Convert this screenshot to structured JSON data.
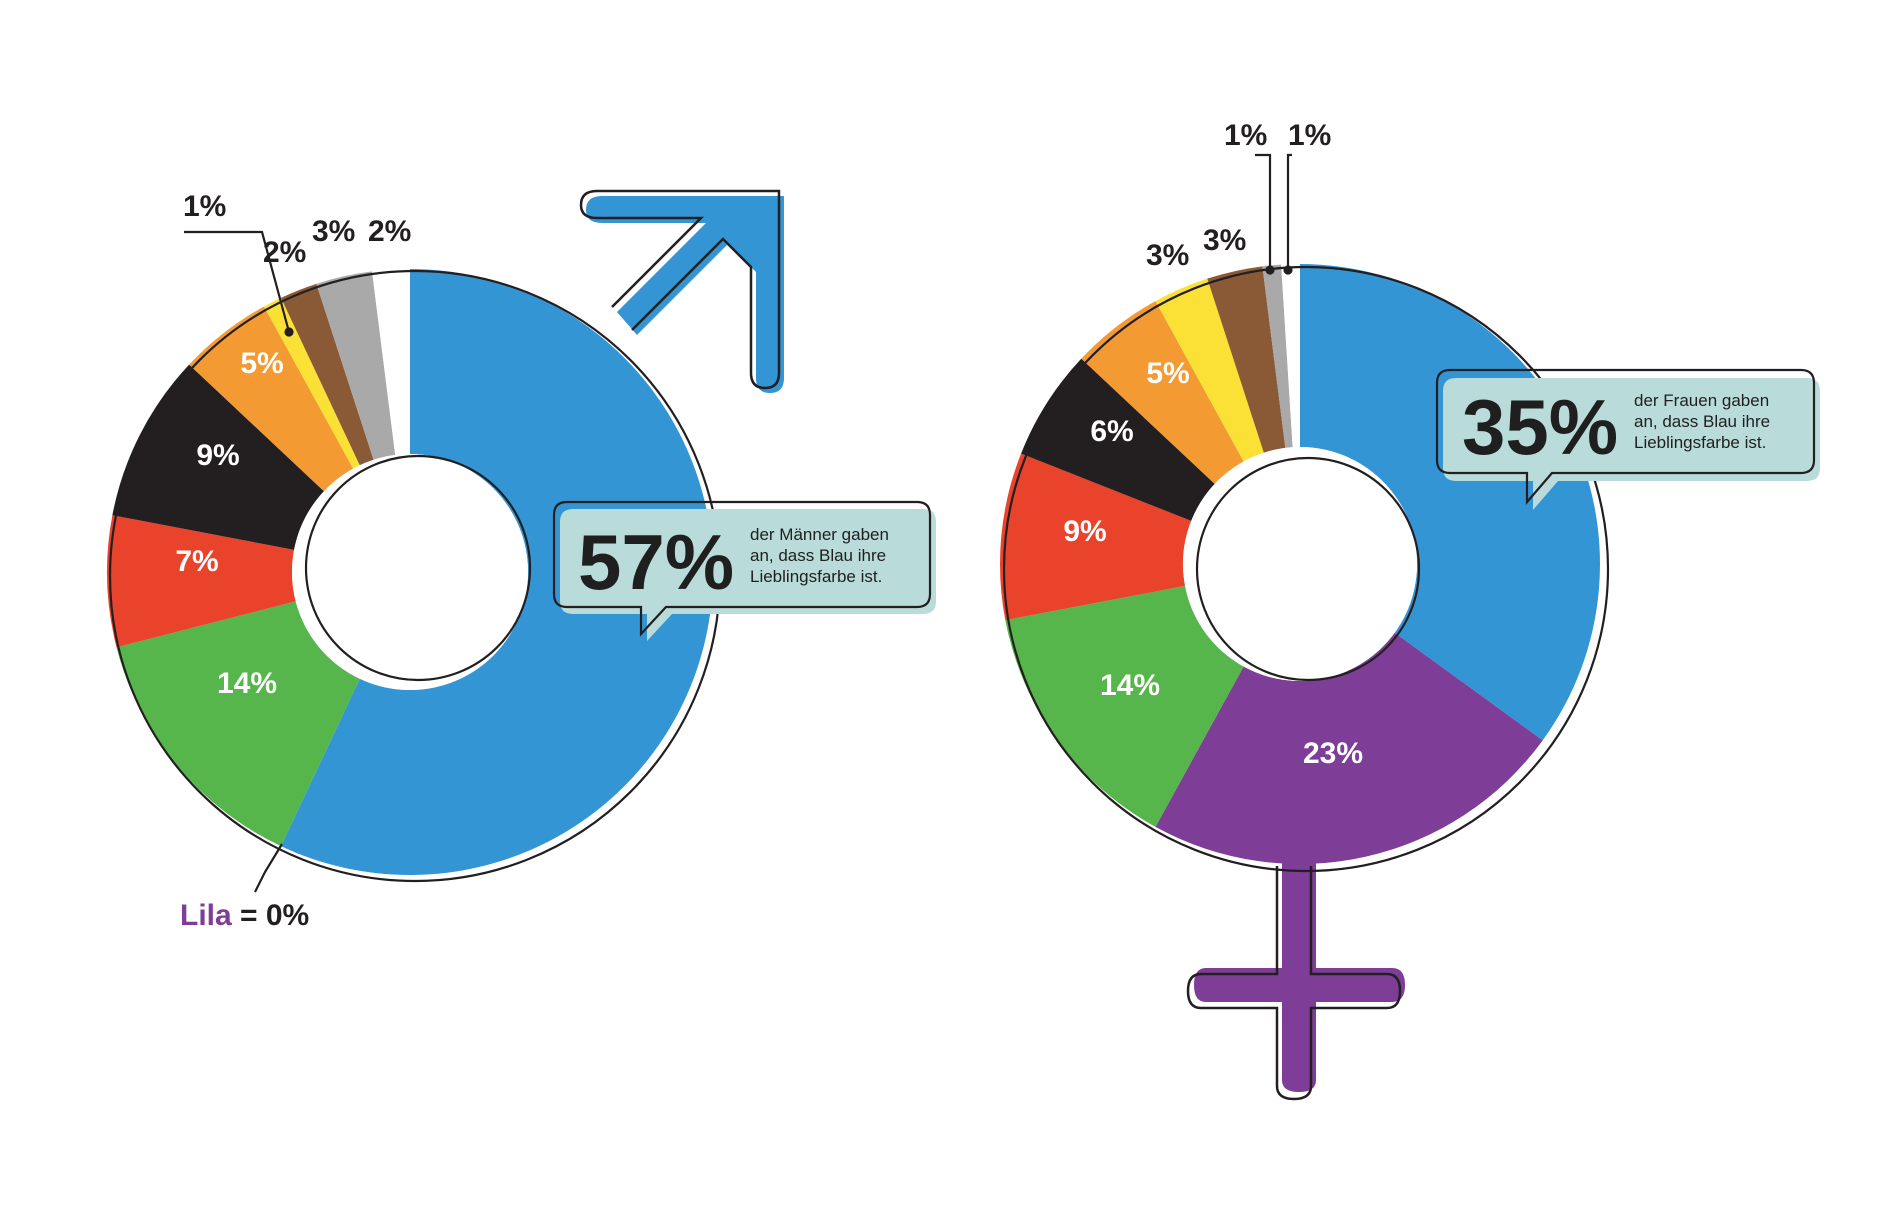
{
  "chart_data": [
    {
      "type": "pie",
      "variant": "donut",
      "symbol": "male",
      "slices": [
        {
          "label": "57%",
          "value": 57,
          "color": "#3495d5",
          "label_color": "#ffffff"
        },
        {
          "label": "14%",
          "value": 14,
          "color": "#56b64c",
          "label_color": "#ffffff"
        },
        {
          "label": "7%",
          "value": 7,
          "color": "#e9432c",
          "label_color": "#ffffff"
        },
        {
          "label": "9%",
          "value": 9,
          "color": "#231f20",
          "label_color": "#ffffff"
        },
        {
          "label": "5%",
          "value": 5,
          "color": "#f39a32",
          "label_color": "#ffffff"
        },
        {
          "label": "1%",
          "value": 1,
          "color": "#fbe035",
          "label_color": "#231f20"
        },
        {
          "label": "2%",
          "value": 2,
          "color": "#8a5a36",
          "label_color": "#231f20"
        },
        {
          "label": "3%",
          "value": 3,
          "color": "#a9a9a9",
          "label_color": "#231f20"
        },
        {
          "label": "2%",
          "value": 2,
          "color": "#ffffff",
          "label_color": "#231f20"
        }
      ],
      "callout": {
        "big": "57%",
        "text": [
          "der Männer gaben",
          "an, dass Blau ihre",
          "Lieblingsfarbe ist."
        ]
      },
      "note": {
        "word": "Lila",
        "rest": " = 0%",
        "word_color": "#7e3d96"
      }
    },
    {
      "type": "pie",
      "variant": "donut",
      "symbol": "female",
      "slices": [
        {
          "label": "35%",
          "value": 35,
          "color": "#3495d5",
          "label_color": "#ffffff"
        },
        {
          "label": "23%",
          "value": 23,
          "color": "#7e3d96",
          "label_color": "#ffffff"
        },
        {
          "label": "14%",
          "value": 14,
          "color": "#56b64c",
          "label_color": "#ffffff"
        },
        {
          "label": "9%",
          "value": 9,
          "color": "#e9432c",
          "label_color": "#ffffff"
        },
        {
          "label": "6%",
          "value": 6,
          "color": "#231f20",
          "label_color": "#ffffff"
        },
        {
          "label": "5%",
          "value": 5,
          "color": "#f39a32",
          "label_color": "#ffffff"
        },
        {
          "label": "3%",
          "value": 3,
          "color": "#fbe035",
          "label_color": "#231f20"
        },
        {
          "label": "3%",
          "value": 3,
          "color": "#8a5a36",
          "label_color": "#231f20"
        },
        {
          "label": "1%",
          "value": 1,
          "color": "#a9a9a9",
          "label_color": "#231f20"
        },
        {
          "label": "1%",
          "value": 1,
          "color": "#ffffff",
          "label_color": "#231f20"
        }
      ],
      "callout": {
        "big": "35%",
        "text": [
          "der Frauen gaben",
          "an, dass Blau ihre",
          "Lieblingsfarbe ist."
        ]
      }
    }
  ]
}
